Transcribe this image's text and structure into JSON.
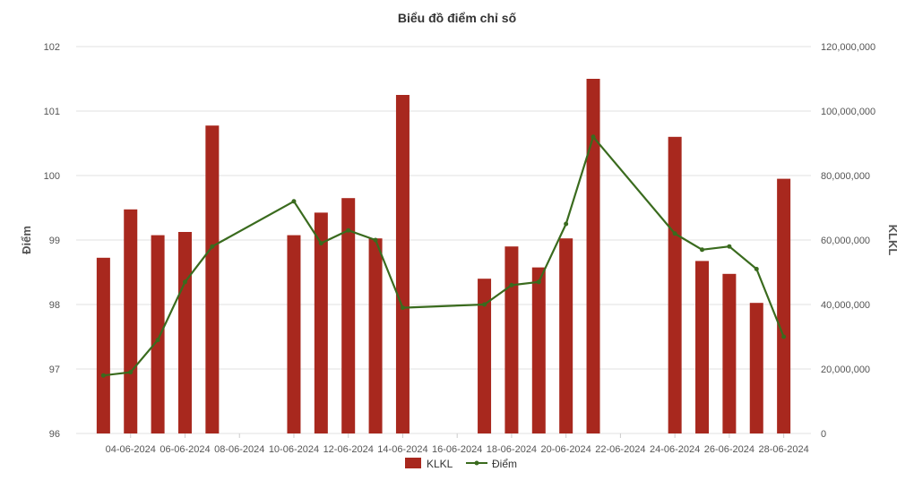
{
  "chart_data": {
    "type": "bar",
    "title": "Biểu đồ điểm chỉ số",
    "dates": [
      "03-06-2024",
      "04-06-2024",
      "05-06-2024",
      "06-06-2024",
      "07-06-2024",
      "10-06-2024",
      "11-06-2024",
      "12-06-2024",
      "13-06-2024",
      "14-06-2024",
      "17-06-2024",
      "18-06-2024",
      "19-06-2024",
      "20-06-2024",
      "21-06-2024",
      "24-06-2024",
      "25-06-2024",
      "26-06-2024",
      "27-06-2024",
      "28-06-2024"
    ],
    "x_tick_labels": [
      "04-06-2024",
      "06-06-2024",
      "08-06-2024",
      "10-06-2024",
      "12-06-2024",
      "14-06-2024",
      "16-06-2024",
      "18-06-2024",
      "20-06-2024",
      "22-06-2024",
      "24-06-2024",
      "26-06-2024",
      "28-06-2024"
    ],
    "series": [
      {
        "name": "KLKL",
        "type": "bar",
        "axis": "right",
        "color": "#a8281e",
        "values": [
          54500000,
          69500000,
          61500000,
          62500000,
          95500000,
          61500000,
          68500000,
          73000000,
          60500000,
          105000000,
          48000000,
          58000000,
          51500000,
          60500000,
          110000000,
          92000000,
          53500000,
          49500000,
          40500000,
          79000000
        ]
      },
      {
        "name": "Điểm",
        "type": "line",
        "axis": "left",
        "color": "#3a6b1e",
        "values": [
          96.9,
          96.95,
          97.45,
          98.35,
          98.9,
          99.6,
          98.95,
          99.15,
          99.0,
          97.95,
          98.0,
          98.3,
          98.35,
          99.25,
          100.6,
          99.1,
          98.85,
          98.9,
          98.55,
          97.5
        ]
      }
    ],
    "ylabel": "Điểm",
    "y2label": "KLKL",
    "ylim": [
      96,
      102
    ],
    "y_ticks": [
      96,
      97,
      98,
      99,
      100,
      101,
      102
    ],
    "y2lim": [
      0,
      120000000
    ],
    "y2_tick_labels": [
      "0",
      "20,000,000",
      "40,000,000",
      "60,000,000",
      "80,000,000",
      "100,000,000",
      "120,000,000"
    ],
    "grid": true,
    "legend_position": "bottom-center"
  }
}
